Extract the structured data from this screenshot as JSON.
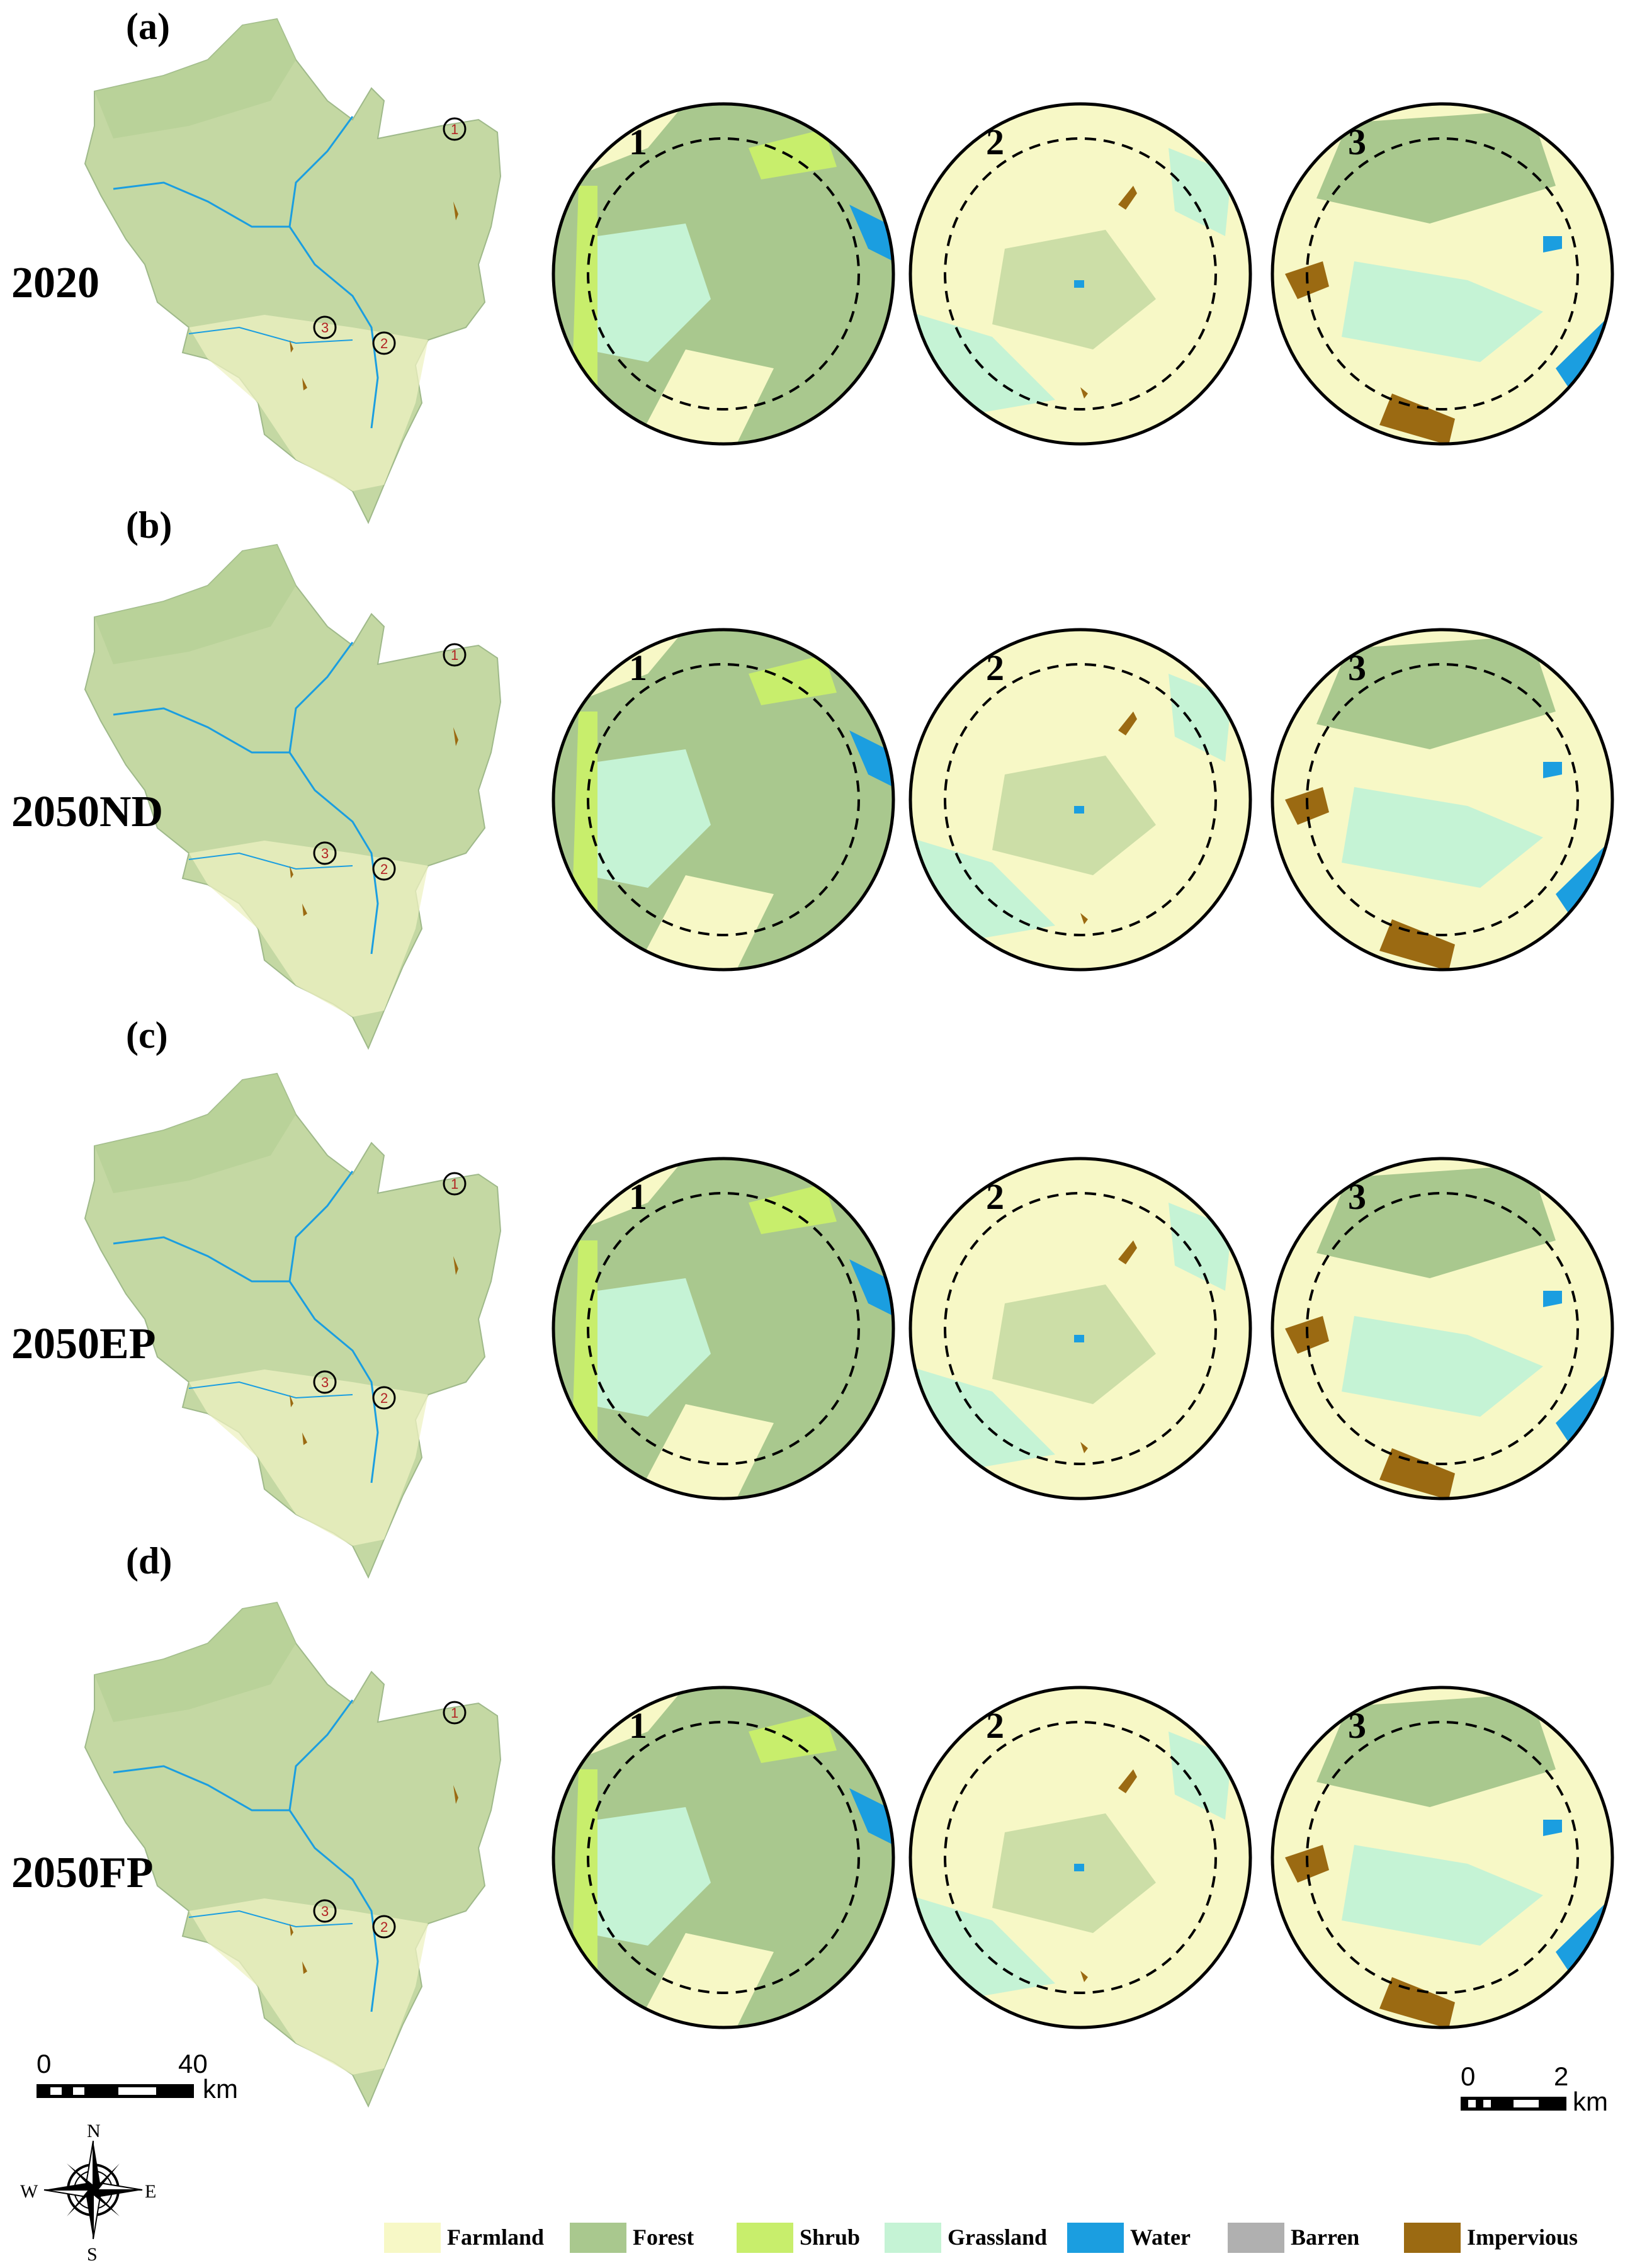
{
  "panels": [
    {
      "label": "(a)",
      "scenario": "2020"
    },
    {
      "label": "(b)",
      "scenario": "2050ND"
    },
    {
      "label": "(c)",
      "scenario": "2050EP"
    },
    {
      "label": "(d)",
      "scenario": "2050FP"
    }
  ],
  "sample_markers": [
    "1",
    "2",
    "3"
  ],
  "scale_main": {
    "tick0": "0",
    "tick1": "40",
    "unit": "km"
  },
  "scale_zoom": {
    "tick0": "0",
    "tick1": "2",
    "unit": "km"
  },
  "north_arrow": {
    "n": "N",
    "s": "S",
    "e": "E",
    "w": "W"
  },
  "legend": [
    {
      "label": "Farmland",
      "color": "#f7f8c6"
    },
    {
      "label": "Forest",
      "color": "#a9c88e"
    },
    {
      "label": "Shrub",
      "color": "#c8ee6c"
    },
    {
      "label": "Grassland",
      "color": "#c5f3d5"
    },
    {
      "label": "Water",
      "color": "#1b9ee0"
    },
    {
      "label": "Barren",
      "color": "#b0b0b0"
    },
    {
      "label": "Impervious",
      "color": "#9b6a12"
    }
  ]
}
